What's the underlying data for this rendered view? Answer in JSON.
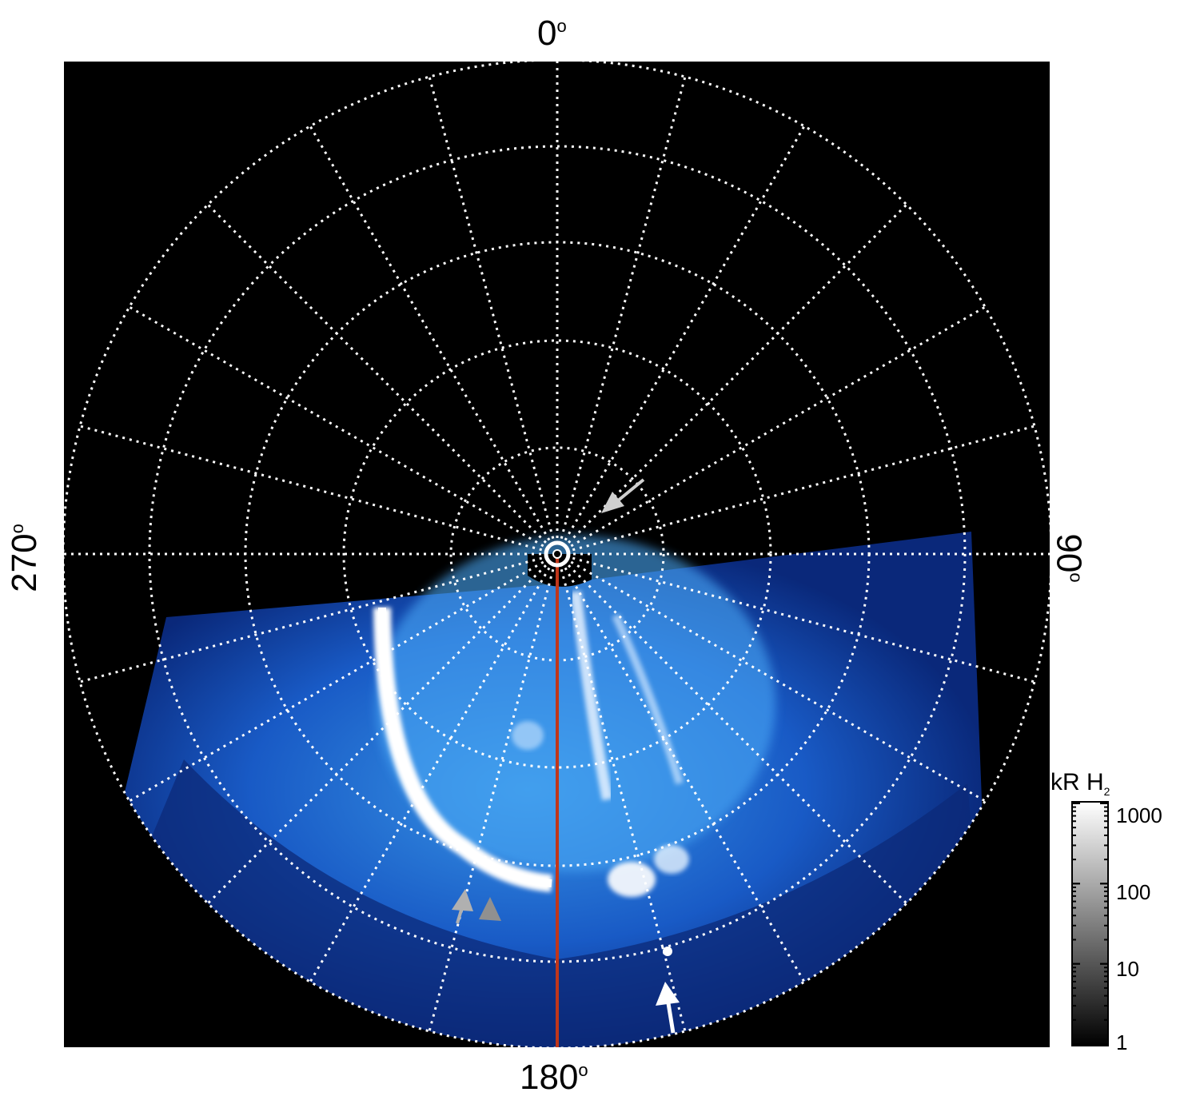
{
  "figure": {
    "axis_labels": {
      "top": "0",
      "right": "90",
      "bottom": "180",
      "left": "270",
      "degree_symbol": "o"
    },
    "colorbar": {
      "title_main": "kR H",
      "title_sub": "2",
      "ticks": [
        "1000",
        "100",
        "10",
        "1"
      ],
      "scale": "log"
    },
    "colors": {
      "background": "#000000",
      "grid": "#ffffff",
      "meridian_line": "#c0361a",
      "aurora_low": "#0a2a8a",
      "aurora_mid": "#1e78e0",
      "aurora_high": "#ffffff"
    },
    "annotations": [
      {
        "name": "arrow-upper-right",
        "color": "#cfcfcf"
      },
      {
        "name": "arrow-lower-left-1",
        "color": "#b0b0b0"
      },
      {
        "name": "arrow-lower-left-2",
        "color": "#909090"
      },
      {
        "name": "arrow-bottom-right",
        "color": "#ffffff"
      }
    ]
  }
}
